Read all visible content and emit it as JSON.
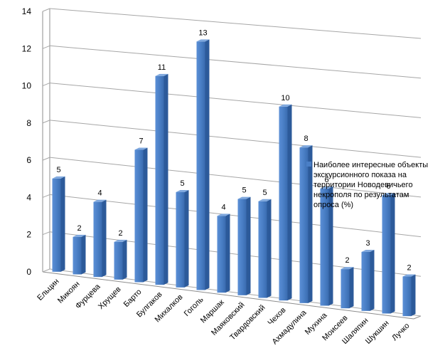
{
  "chart_data": {
    "type": "bar",
    "categories": [
      "Ельцин",
      "Микоян",
      "Фурцева",
      "Хрущев",
      "Барто",
      "Булгаков",
      "Михалков",
      "Гоголь",
      "Маршак",
      "Маяковский",
      "Твардовский",
      "Чехов",
      "Ахмадулина",
      "Мухина",
      "Моисеев",
      "Шаляпин",
      "Шукшин",
      "Лучко"
    ],
    "series": [
      {
        "name": "Наиболее интересные объекты экскурсионного показа на территории Новодевичьего некрополя по результатам опроса (%)",
        "values": [
          5,
          2,
          4,
          2,
          7,
          11,
          5,
          13,
          4,
          5,
          5,
          10,
          8,
          6,
          2,
          3,
          6,
          2
        ]
      }
    ],
    "ylim": [
      0,
      14
    ],
    "yticks": [
      "0",
      "2",
      "4",
      "6",
      "8",
      "10",
      "12",
      "14"
    ],
    "grid": true,
    "legend": "right",
    "three_d": true,
    "colors": {
      "bar_front": "#4a7fc6",
      "bar_side": "#2c5a9a",
      "bar_top": "#7fa8de",
      "grid": "#a6a6a6",
      "wall": "#8c8c8c"
    }
  }
}
